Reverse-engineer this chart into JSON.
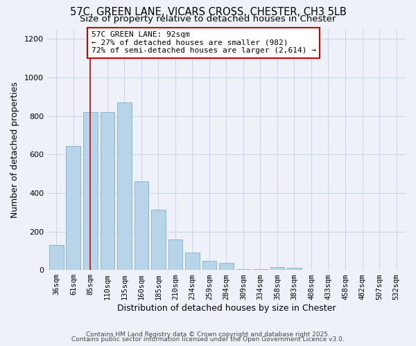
{
  "title": "57C, GREEN LANE, VICARS CROSS, CHESTER, CH3 5LB",
  "subtitle": "Size of property relative to detached houses in Chester",
  "xlabel": "Distribution of detached houses by size in Chester",
  "ylabel": "Number of detached properties",
  "categories": [
    "36sqm",
    "61sqm",
    "85sqm",
    "110sqm",
    "135sqm",
    "160sqm",
    "185sqm",
    "210sqm",
    "234sqm",
    "259sqm",
    "284sqm",
    "309sqm",
    "334sqm",
    "358sqm",
    "383sqm",
    "408sqm",
    "433sqm",
    "458sqm",
    "482sqm",
    "507sqm",
    "532sqm"
  ],
  "values": [
    130,
    645,
    820,
    820,
    870,
    460,
    315,
    158,
    92,
    48,
    38,
    5,
    5,
    15,
    12,
    2,
    0,
    0,
    0,
    0,
    2
  ],
  "bar_color": "#b8d4e8",
  "bar_edge_color": "#7fb0cc",
  "vline_x_index": 2.0,
  "vline_color": "#cc0000",
  "annotation_text": "57C GREEN LANE: 92sqm\n← 27% of detached houses are smaller (982)\n72% of semi-detached houses are larger (2,614) →",
  "annotation_box_facecolor": "#ffffff",
  "annotation_box_edgecolor": "#cc0000",
  "ylim": [
    0,
    1250
  ],
  "yticks": [
    0,
    200,
    400,
    600,
    800,
    1000,
    1200
  ],
  "footer1": "Contains HM Land Registry data © Crown copyright and database right 2025.",
  "footer2": "Contains public sector information licensed under the Open Government Licence v3.0.",
  "bg_color": "#eef2f8",
  "grid_color": "#c8d4e8",
  "title_fontsize": 10.5,
  "subtitle_fontsize": 9.5,
  "axis_label_fontsize": 9,
  "tick_fontsize": 7.5,
  "footer_fontsize": 6.5
}
